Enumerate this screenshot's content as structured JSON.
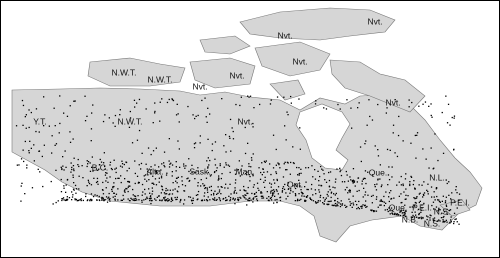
{
  "map": {
    "labels": [
      "Nvt.",
      "Nvt.",
      "Nvt.",
      "N.W.T.",
      "N.W.T.",
      "Nvt.",
      "Nvt.",
      "Nvt.",
      "Y.T.",
      "N.W.T.",
      "Nvt.",
      "B.C.",
      "Alta.",
      "Sask.",
      "Man.",
      "Ont.",
      "Que.",
      "N.L.",
      "Que.",
      "P.E.I.",
      "N.S.",
      "N.B.",
      "N.S.",
      "P.E.I."
    ]
  }
}
